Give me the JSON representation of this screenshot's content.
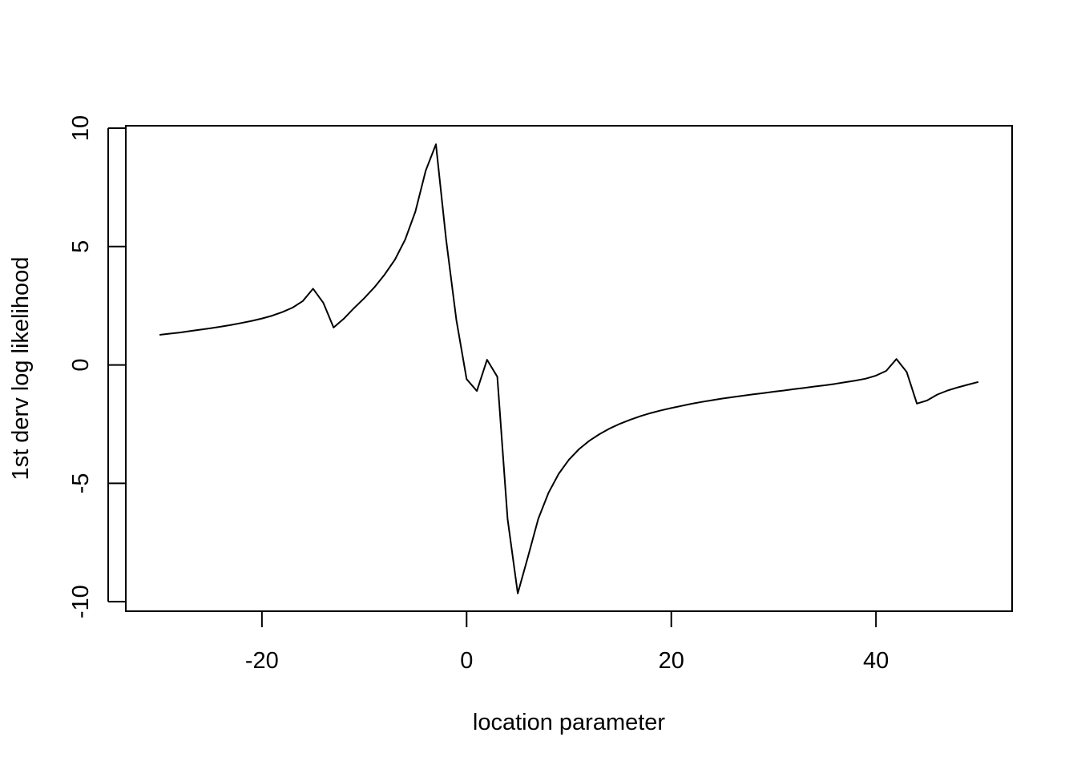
{
  "chart_data": {
    "type": "line",
    "title": "",
    "xlabel": "location parameter",
    "ylabel": "1st derv log likelihood",
    "xlim": [
      -33.3,
      53.3
    ],
    "ylim": [
      -10.4,
      10.1
    ],
    "xticks": [
      -20,
      0,
      20,
      40
    ],
    "xtick_labels": [
      "-20",
      "0",
      "20",
      "40"
    ],
    "yticks": [
      -10,
      -5,
      0,
      5,
      10
    ],
    "ytick_labels": [
      "-10",
      "-5",
      "0",
      "5",
      "10"
    ],
    "grid": false,
    "legend": "none",
    "line_color": "#000000",
    "series": [
      {
        "x": [
          -30,
          -29,
          -28,
          -27,
          -26,
          -25,
          -24,
          -23,
          -22,
          -21,
          -20,
          -19,
          -18,
          -17,
          -16,
          -15,
          -14,
          -13,
          -12,
          -11,
          -10,
          -9,
          -8,
          -7,
          -6,
          -5,
          -4,
          -3,
          -2,
          -1,
          0,
          1,
          2,
          3,
          4,
          5,
          6,
          7,
          8,
          9,
          10,
          11,
          12,
          13,
          14,
          15,
          16,
          17,
          18,
          19,
          20,
          21,
          22,
          23,
          24,
          25,
          26,
          27,
          28,
          29,
          30,
          31,
          32,
          33,
          34,
          35,
          36,
          37,
          38,
          39,
          40,
          41,
          42,
          43,
          44,
          45,
          46,
          47,
          48,
          49,
          50
        ],
        "y": [
          1.27,
          1.32,
          1.37,
          1.43,
          1.49,
          1.55,
          1.62,
          1.69,
          1.77,
          1.86,
          1.96,
          2.08,
          2.23,
          2.42,
          2.7,
          3.22,
          2.62,
          1.58,
          1.95,
          2.4,
          2.82,
          3.28,
          3.82,
          4.45,
          5.3,
          6.48,
          8.2,
          9.32,
          5.3,
          1.9,
          -0.6,
          -1.1,
          0.22,
          -0.5,
          -6.5,
          -9.65,
          -8.1,
          -6.5,
          -5.4,
          -4.6,
          -4.0,
          -3.55,
          -3.2,
          -2.92,
          -2.68,
          -2.48,
          -2.31,
          -2.16,
          -2.03,
          -1.92,
          -1.82,
          -1.73,
          -1.64,
          -1.56,
          -1.49,
          -1.42,
          -1.36,
          -1.3,
          -1.24,
          -1.19,
          -1.13,
          -1.08,
          -1.02,
          -0.97,
          -0.91,
          -0.86,
          -0.8,
          -0.73,
          -0.66,
          -0.58,
          -0.45,
          -0.25,
          0.25,
          -0.3,
          -1.63,
          -1.5,
          -1.25,
          -1.08,
          -0.95,
          -0.83,
          -0.72
        ]
      }
    ]
  }
}
